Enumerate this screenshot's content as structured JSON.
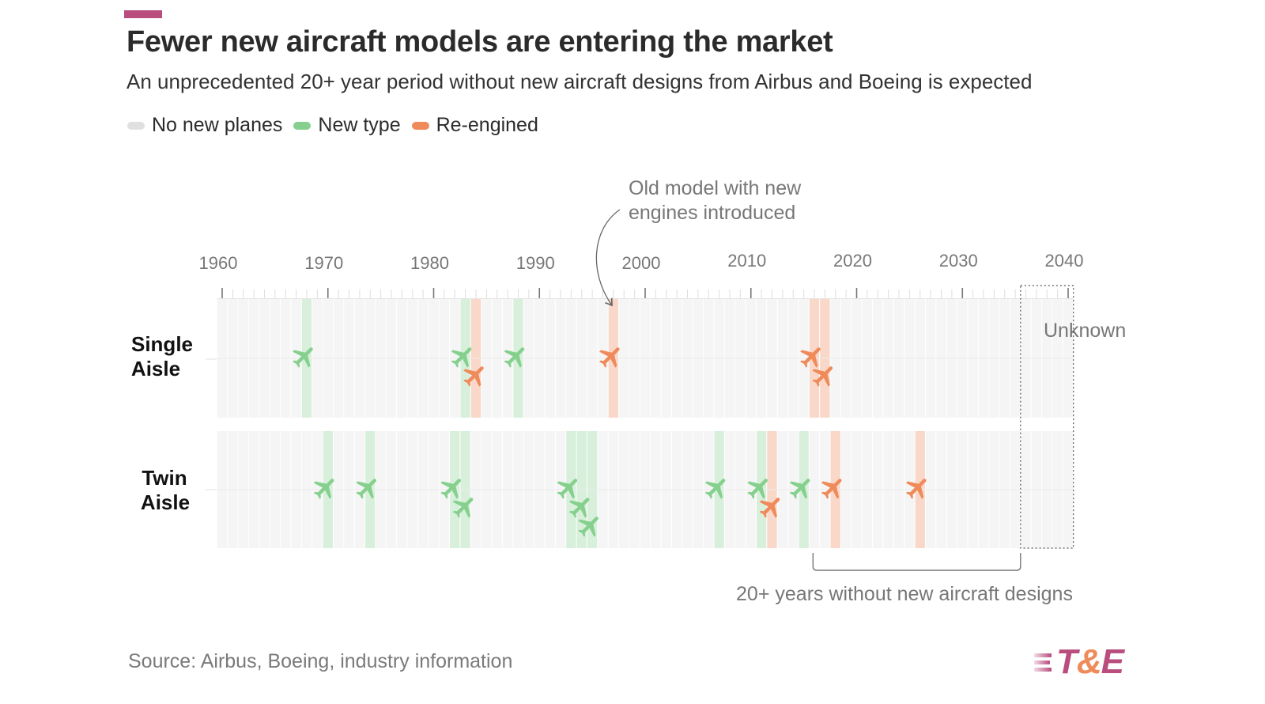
{
  "header": {
    "title": "Fewer new aircraft models are entering the market",
    "subtitle": "An unprecedented 20+ year period without new aircraft designs from Airbus and Boeing is expected"
  },
  "legend": [
    {
      "label": "No new planes",
      "color": "#e0e0e0"
    },
    {
      "label": "New type",
      "color": "#86d08e"
    },
    {
      "label": "Re-engined",
      "color": "#ef8a5a"
    }
  ],
  "footer": {
    "source": "Source: Airbus, Boeing, industry information",
    "logo": {
      "prefix": "T",
      "amp": "&",
      "suffix": "E"
    }
  },
  "colors": {
    "accent": "#b84d7e",
    "new_type": "#86d08e",
    "new_type_band": "#d8f0db",
    "re_engined": "#ef8a5a",
    "re_engined_band": "#f9d8c9",
    "empty_cell": "#f5f5f5",
    "text_muted": "#777777"
  },
  "chart_data": {
    "type": "timeline",
    "title": "Fewer new aircraft models are entering the market",
    "subtitle": "An unprecedented 20+ year period without new aircraft designs from Airbus and Boeing is expected",
    "x_range": [
      1960,
      2040
    ],
    "x_ticks": [
      1960,
      1970,
      1980,
      1990,
      2000,
      2010,
      2020,
      2030,
      2040
    ],
    "rows": [
      {
        "name": "Single Aisle",
        "label_lines": [
          "Single",
          "Aisle"
        ],
        "events": [
          {
            "year": 1968,
            "type": "new"
          },
          {
            "year": 1983,
            "type": "new"
          },
          {
            "year": 1984,
            "type": "reengined"
          },
          {
            "year": 1988,
            "type": "new"
          },
          {
            "year": 1997,
            "type": "reengined"
          },
          {
            "year": 2016,
            "type": "reengined"
          },
          {
            "year": 2017,
            "type": "reengined"
          }
        ]
      },
      {
        "name": "Twin Aisle",
        "label_lines": [
          "Twin",
          "Aisle"
        ],
        "events": [
          {
            "year": 1970,
            "type": "new"
          },
          {
            "year": 1974,
            "type": "new"
          },
          {
            "year": 1982,
            "type": "new"
          },
          {
            "year": 1983,
            "type": "new"
          },
          {
            "year": 1993,
            "type": "new"
          },
          {
            "year": 1994,
            "type": "new"
          },
          {
            "year": 1995,
            "type": "new"
          },
          {
            "year": 2007,
            "type": "new"
          },
          {
            "year": 2011,
            "type": "new"
          },
          {
            "year": 2012,
            "type": "reengined"
          },
          {
            "year": 2015,
            "type": "new"
          },
          {
            "year": 2018,
            "type": "reengined"
          },
          {
            "year": 2026,
            "type": "reengined"
          }
        ]
      }
    ],
    "unknown_range": [
      2036,
      2040
    ],
    "annotations": {
      "unknown_label": "Unknown",
      "reengine_note": [
        "Old model with new",
        "engines introduced"
      ],
      "reengine_note_year": 1997,
      "gap_label": "20+ years without new aircraft designs",
      "gap_range": [
        2016,
        2035
      ]
    },
    "legend": [
      "No new planes",
      "New type",
      "Re-engined"
    ],
    "legend_position": "top-left"
  }
}
